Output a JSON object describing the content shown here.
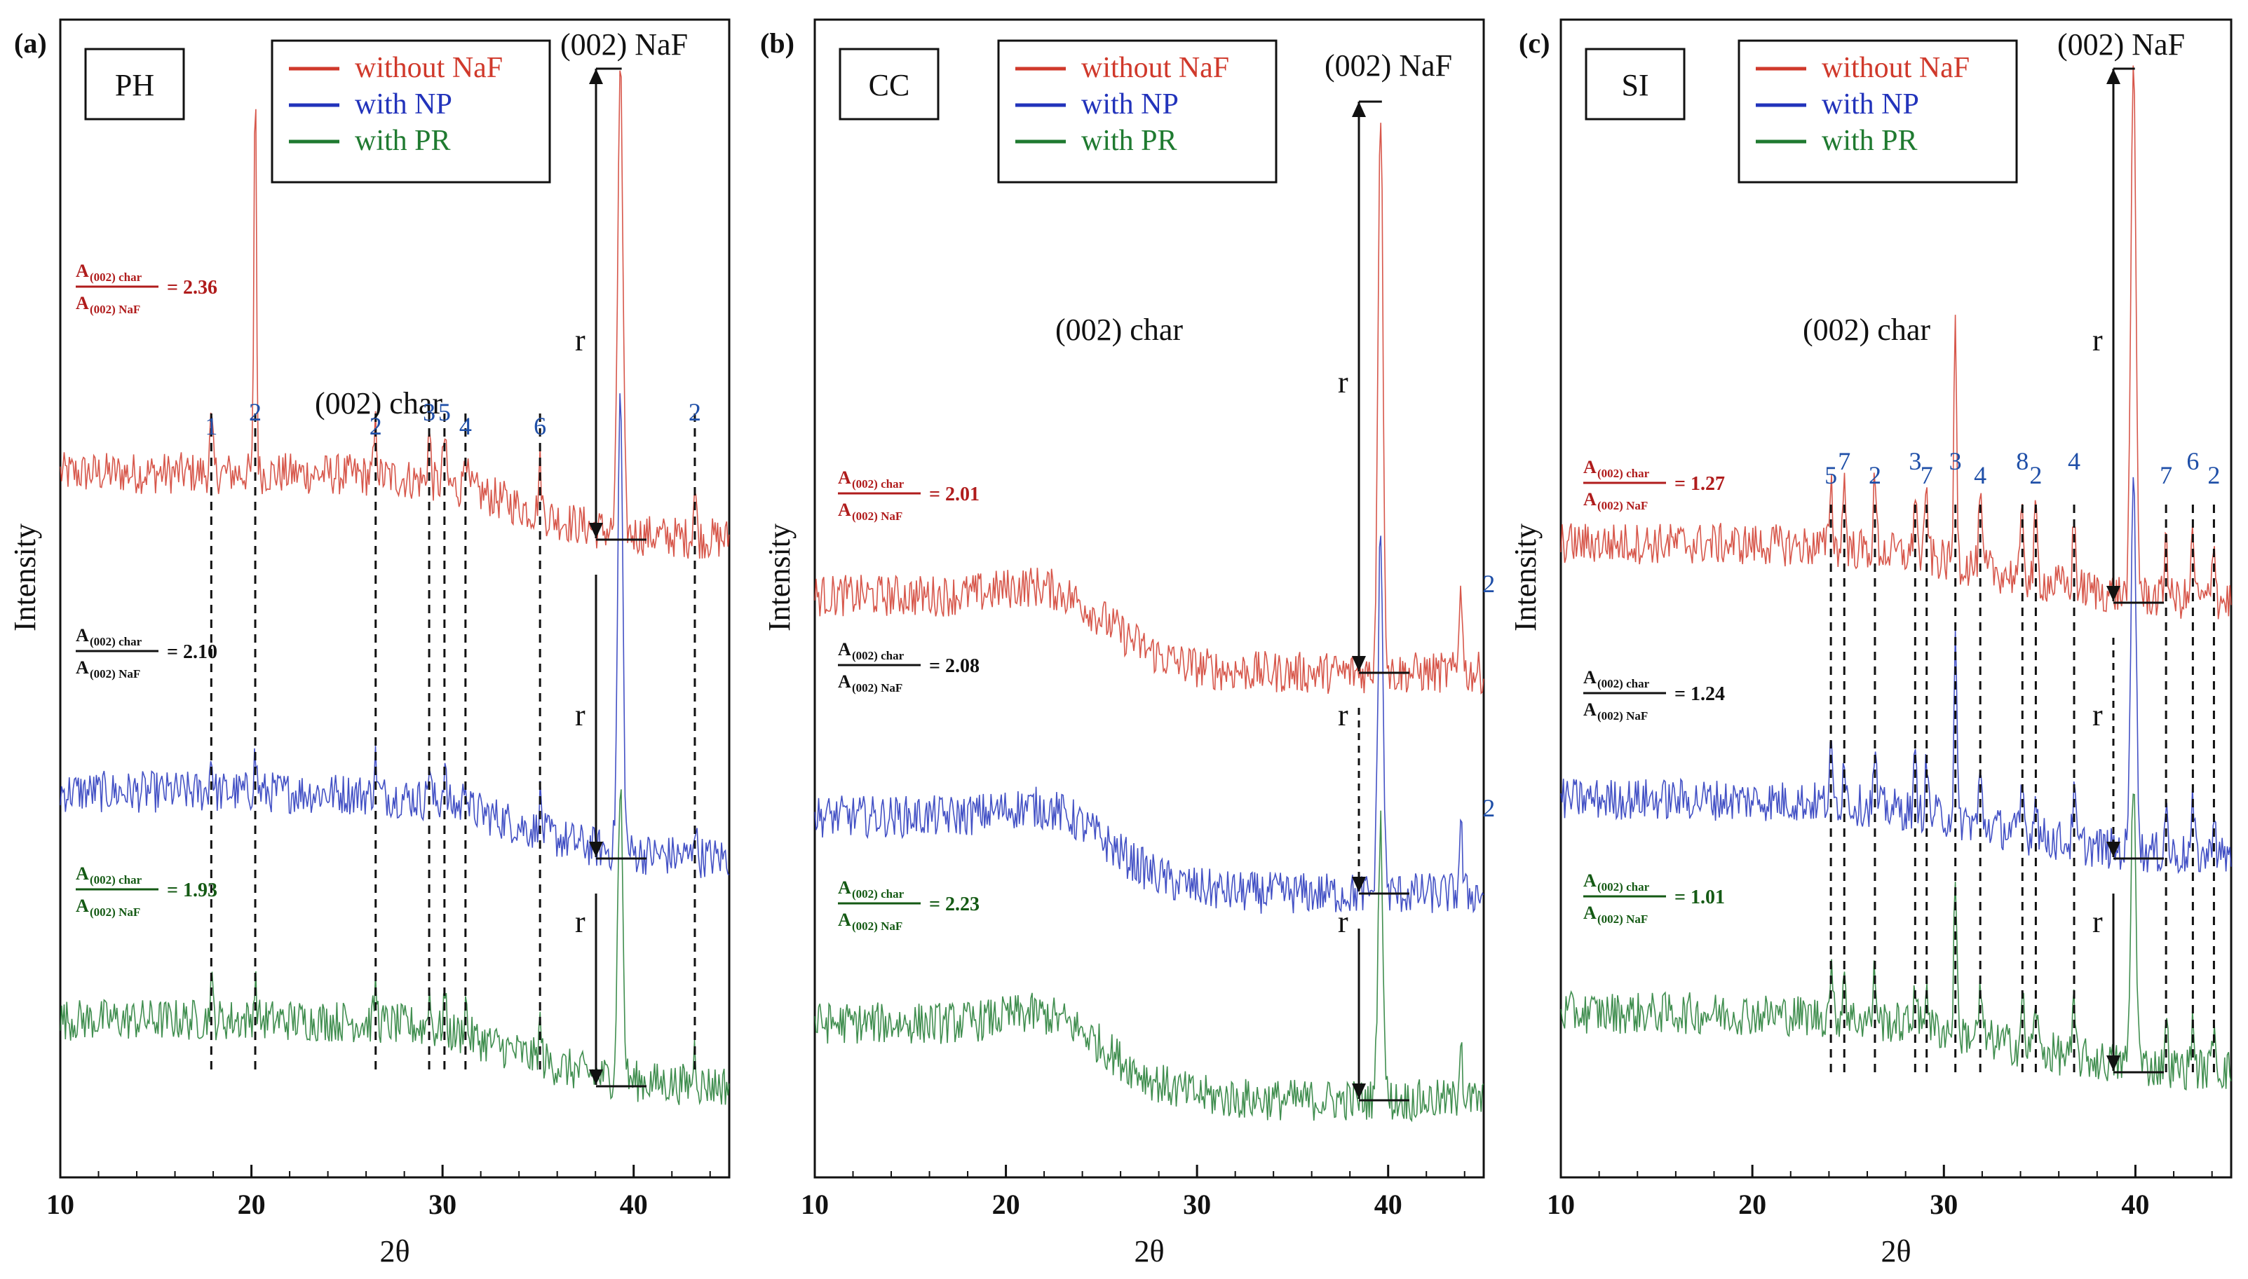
{
  "colors": {
    "without": "#d0392b",
    "np": "#2233bb",
    "pr": "#1f7a30",
    "peak_label": "#1f4fa8",
    "ratio_without": "#b01c1c",
    "ratio_np": "#111111",
    "ratio_pr": "#145a14"
  },
  "legend": {
    "without_label": "without NaF",
    "np_label": "with  NP",
    "pr_label": "with PR"
  },
  "text": {
    "naf_label": "(002) NaF",
    "char_label": "(002) char",
    "r_label": "r",
    "ratio_numerator": "A",
    "ratio_num_sub": "(002) char",
    "ratio_den_sub": "(002) NaF",
    "ylabel": "Intensity",
    "xlabel": "2θ"
  },
  "chart_data": [
    {
      "type": "line",
      "panel": "(a)",
      "sample": "PH",
      "xlabel": "2θ",
      "ylabel": "Intensity",
      "xlim": [
        10,
        45
      ],
      "xticks": [
        10,
        20,
        30,
        40
      ],
      "naf_peak_2theta": 39.3,
      "series": [
        {
          "name": "without NaF",
          "naf_peak_height": 1.0,
          "ratio": "2.36"
        },
        {
          "name": "with  NP",
          "naf_peak_height": 0.52,
          "ratio": "2.10"
        },
        {
          "name": "with PR",
          "naf_peak_height": 0.3,
          "ratio": "1.93"
        }
      ],
      "peaks": [
        {
          "label": "1",
          "two_theta": 17.9
        },
        {
          "label": "2",
          "two_theta": 20.2
        },
        {
          "label": "2",
          "two_theta": 26.5
        },
        {
          "label": "3",
          "two_theta": 29.3
        },
        {
          "label": "4",
          "two_theta": 31.2
        },
        {
          "label": "5",
          "two_theta": 30.1
        },
        {
          "label": "6",
          "two_theta": 35.1
        },
        {
          "label": "2",
          "two_theta": 43.2
        }
      ]
    },
    {
      "type": "line",
      "panel": "(b)",
      "sample": "CC",
      "xlabel": "2θ",
      "ylabel": "Intensity",
      "xlim": [
        10,
        45
      ],
      "xticks": [
        10,
        20,
        30,
        40
      ],
      "naf_peak_2theta": 39.6,
      "series": [
        {
          "name": "without NaF",
          "naf_peak_height": 1.0,
          "ratio": "2.01"
        },
        {
          "name": "with  NP",
          "naf_peak_height": 0.55,
          "ratio": "2.08"
        },
        {
          "name": "with PR",
          "naf_peak_height": 0.33,
          "ratio": "2.23"
        }
      ],
      "peaks": [
        {
          "label": "2",
          "two_theta": 43.8
        },
        {
          "label": "2",
          "two_theta": 43.8
        }
      ]
    },
    {
      "type": "line",
      "panel": "(c)",
      "sample": "SI",
      "xlabel": "2θ",
      "ylabel": "Intensity",
      "xlim": [
        10,
        45
      ],
      "xticks": [
        10,
        20,
        30,
        40
      ],
      "naf_peak_2theta": 39.9,
      "series": [
        {
          "name": "without NaF",
          "naf_peak_height": 1.0,
          "ratio": "1.27"
        },
        {
          "name": "with  NP",
          "naf_peak_height": 0.5,
          "ratio": "1.24"
        },
        {
          "name": "with PR",
          "naf_peak_height": 0.3,
          "ratio": "1.01"
        }
      ],
      "peaks": [
        {
          "label": "5",
          "two_theta": 24.1
        },
        {
          "label": "7",
          "two_theta": 24.8
        },
        {
          "label": "2",
          "two_theta": 26.4
        },
        {
          "label": "3",
          "two_theta": 28.5
        },
        {
          "label": "7",
          "two_theta": 29.1
        },
        {
          "label": "3",
          "two_theta": 30.6
        },
        {
          "label": "4",
          "two_theta": 31.9
        },
        {
          "label": "8",
          "two_theta": 34.1
        },
        {
          "label": "2",
          "two_theta": 34.8
        },
        {
          "label": "4",
          "two_theta": 36.8
        },
        {
          "label": "7",
          "two_theta": 41.6
        },
        {
          "label": "6",
          "two_theta": 43.0
        },
        {
          "label": "2",
          "two_theta": 44.1
        }
      ]
    }
  ]
}
